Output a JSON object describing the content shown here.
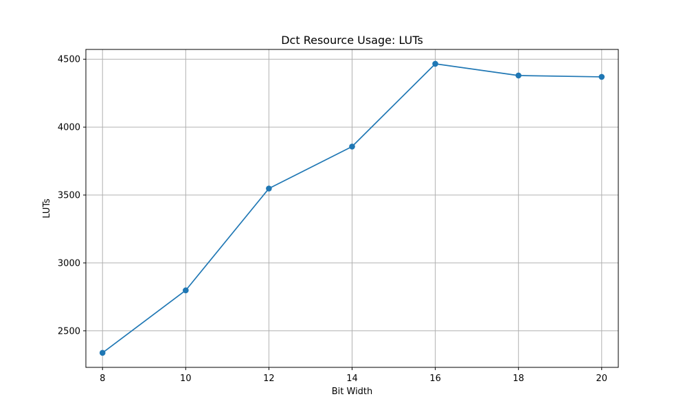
{
  "chart_data": {
    "type": "line",
    "title": "Dct Resource Usage: LUTs",
    "xlabel": "Bit Width",
    "ylabel": "LUTs",
    "x": [
      8,
      10,
      12,
      14,
      16,
      18,
      20
    ],
    "series": [
      {
        "values": [
          2338,
          2798,
          3548,
          3857,
          4466,
          4380,
          4370
        ],
        "color": "#1f77b4",
        "marker": "circle"
      }
    ],
    "xticks": [
      8,
      10,
      12,
      14,
      16,
      18,
      20
    ],
    "yticks": [
      2500,
      3000,
      3500,
      4000,
      4500
    ],
    "xlim": [
      7.6,
      20.4
    ],
    "ylim": [
      2231,
      4572
    ],
    "grid": true,
    "legend": "none"
  }
}
